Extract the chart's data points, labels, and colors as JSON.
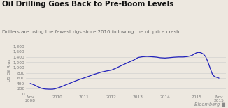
{
  "title": "Oil Drilling Goes Back to Pre-Boom Levels",
  "subtitle": "Drillers are using the fewest rigs since 2010 following the oil price crash",
  "ylabel": "US Oil Rigs",
  "ylim": [
    0,
    1800
  ],
  "ytick_vals": [
    0,
    200,
    400,
    600,
    800,
    1000,
    1200,
    1400,
    1600,
    1800
  ],
  "ytick_labels": [
    "0",
    "200",
    "400",
    "600",
    "800",
    "1,000",
    "1,200",
    "1,400",
    "1,600",
    "1,800"
  ],
  "line_color": "#2222bb",
  "background_color": "#ede8e0",
  "watermark": "Bloomberg",
  "x_pts": [
    0.0,
    0.08,
    0.17,
    0.25,
    0.33,
    0.42,
    0.5,
    0.58,
    0.67,
    0.75,
    0.83,
    0.92,
    1.0,
    1.1,
    1.2,
    1.33,
    1.5,
    1.67,
    1.83,
    2.0,
    2.17,
    2.33,
    2.5,
    2.67,
    2.83,
    3.0,
    3.17,
    3.33,
    3.5,
    3.67,
    3.83,
    4.0,
    4.17,
    4.33,
    4.5,
    4.67,
    4.83,
    5.0,
    5.17,
    5.33,
    5.5,
    5.67,
    5.83,
    6.0,
    6.08,
    6.17,
    6.25,
    6.33,
    6.42,
    6.5,
    6.58,
    6.67,
    6.75,
    6.83,
    6.92,
    7.0
  ],
  "y_pts": [
    400,
    370,
    330,
    290,
    250,
    215,
    195,
    185,
    180,
    178,
    180,
    195,
    220,
    255,
    295,
    350,
    420,
    490,
    550,
    610,
    670,
    730,
    785,
    835,
    870,
    900,
    970,
    1050,
    1130,
    1210,
    1280,
    1380,
    1410,
    1420,
    1410,
    1395,
    1370,
    1360,
    1375,
    1390,
    1400,
    1400,
    1415,
    1460,
    1510,
    1560,
    1575,
    1560,
    1510,
    1420,
    1240,
    980,
    760,
    660,
    630,
    600
  ],
  "x_tick_positions": [
    0.0,
    1.0,
    2.0,
    3.0,
    4.0,
    5.0,
    6.17,
    7.0
  ],
  "x_tick_labels": [
    "Nov\n2008",
    "2010",
    "2011",
    "2012",
    "2013",
    "2014",
    "2015",
    "Nov\n2015"
  ],
  "xlim": [
    -0.15,
    7.25
  ]
}
